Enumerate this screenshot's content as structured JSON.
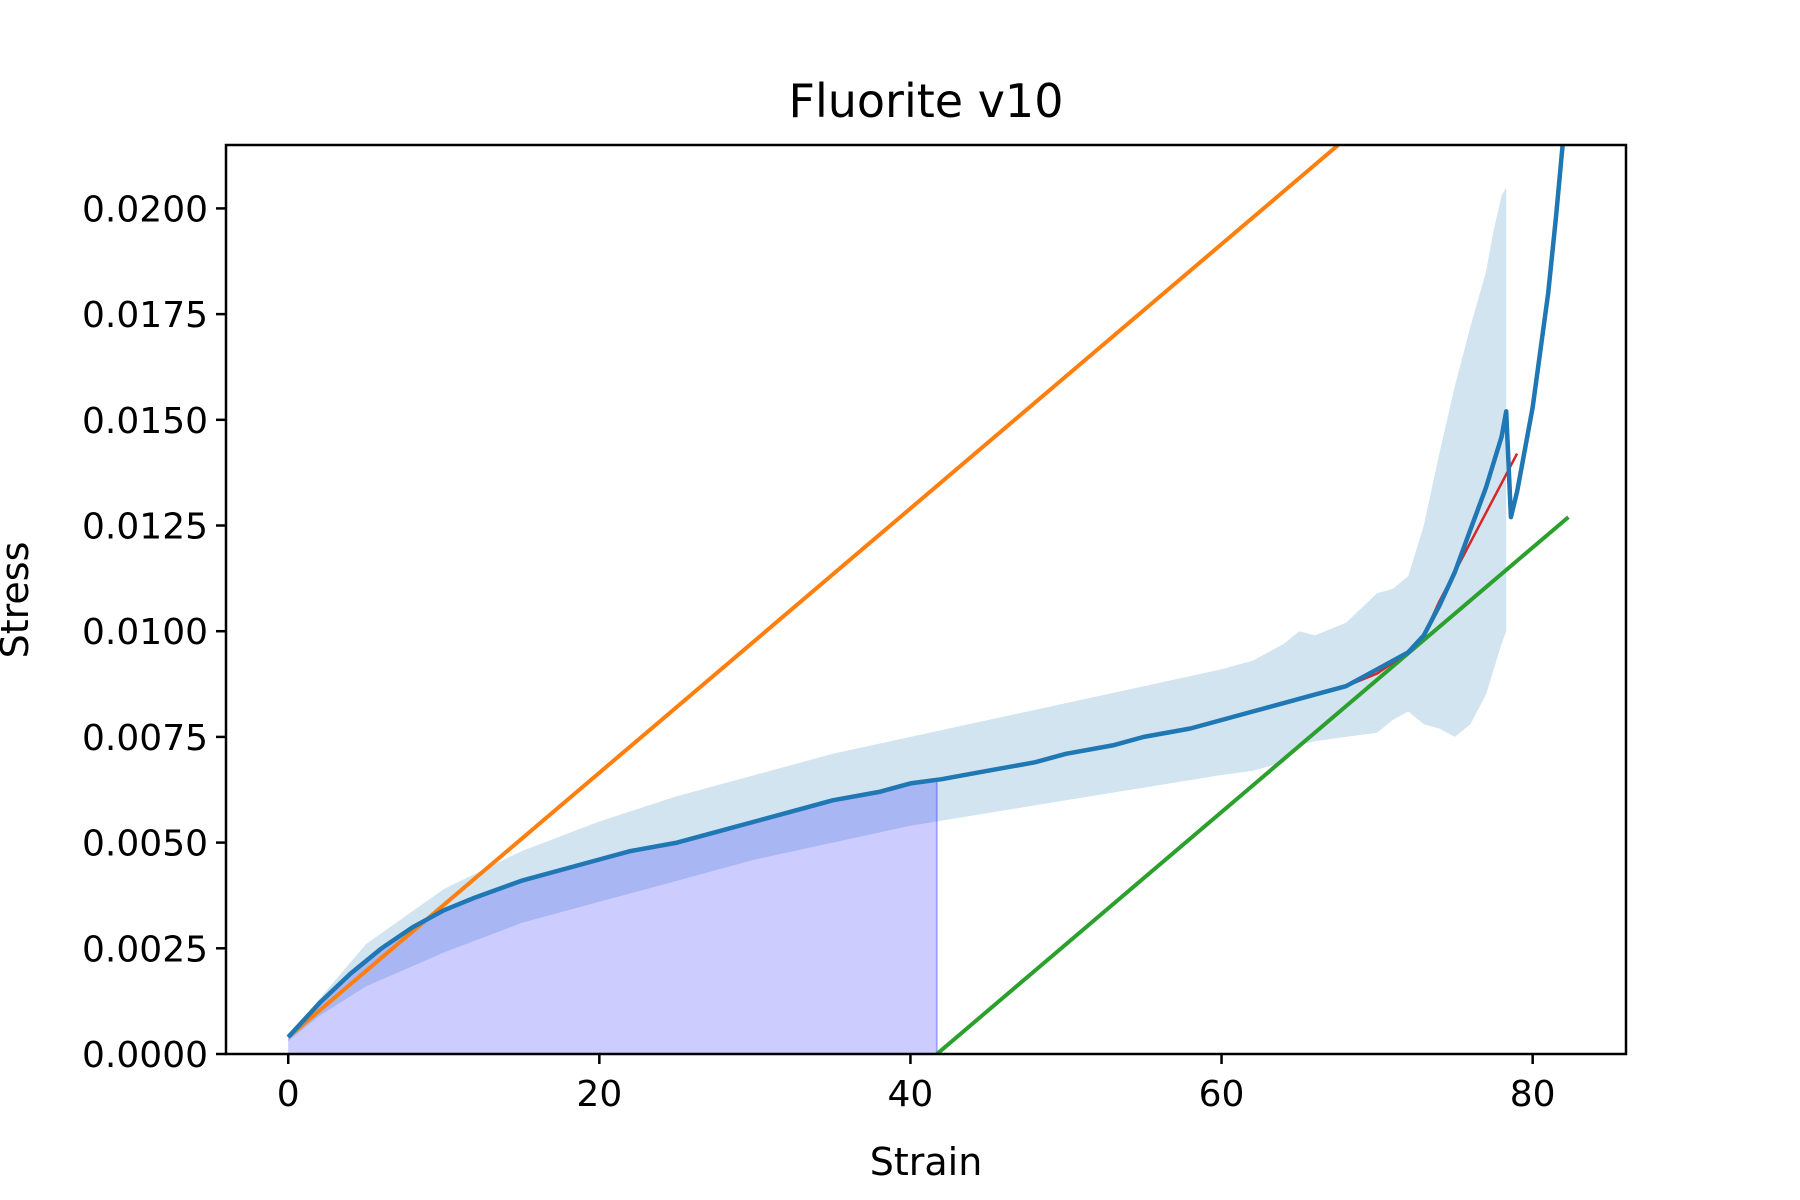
{
  "chart_data": {
    "type": "line",
    "title": "Fluorite v10",
    "xlabel": "Strain",
    "ylabel": "Stress",
    "xlim": [
      -4,
      86
    ],
    "ylim": [
      0,
      0.0215
    ],
    "x_ticks": [
      0,
      20,
      40,
      60,
      80
    ],
    "x_tick_labels": [
      "0",
      "20",
      "40",
      "60",
      "80"
    ],
    "y_ticks": [
      0,
      0.0025,
      0.005,
      0.0075,
      0.01,
      0.0125,
      0.015,
      0.0175,
      0.02
    ],
    "y_tick_labels": [
      "0.0000",
      "0.0025",
      "0.0050",
      "0.0075",
      "0.0100",
      "0.0125",
      "0.0150",
      "0.0175",
      "0.0200"
    ],
    "grid": false,
    "colors": {
      "mean_curve": "#1f77b4",
      "band": "#1f77b4",
      "elastic_line": "#ff7f0e",
      "offset_line": "#2ca02c",
      "fit_curve": "#d62728",
      "toughness_area": "#0000ff"
    },
    "series": [
      {
        "role": "mean_curve",
        "x": [
          0,
          2,
          4,
          6,
          8,
          10,
          12,
          15,
          18,
          20,
          22,
          25,
          28,
          30,
          33,
          35,
          38,
          40,
          42,
          45,
          48,
          50,
          53,
          55,
          58,
          60,
          62,
          63,
          64,
          66,
          68,
          70,
          71,
          72,
          73,
          74,
          75,
          76,
          77,
          78,
          78.3,
          78.6,
          79,
          80,
          81,
          81.5,
          82,
          82.3
        ],
        "y": [
          0.0004,
          0.0012,
          0.0019,
          0.0025,
          0.003,
          0.0034,
          0.0037,
          0.0041,
          0.0044,
          0.0046,
          0.0048,
          0.005,
          0.0053,
          0.0055,
          0.0058,
          0.006,
          0.0062,
          0.0064,
          0.0065,
          0.0067,
          0.0069,
          0.0071,
          0.0073,
          0.0075,
          0.0077,
          0.0079,
          0.0081,
          0.0082,
          0.0083,
          0.0085,
          0.0087,
          0.0091,
          0.0093,
          0.0095,
          0.0099,
          0.0106,
          0.0114,
          0.0124,
          0.0134,
          0.0146,
          0.0152,
          0.0127,
          0.0133,
          0.0153,
          0.018,
          0.0198,
          0.0218,
          0.023
        ]
      },
      {
        "role": "band",
        "x": [
          0,
          2,
          5,
          10,
          15,
          20,
          25,
          30,
          35,
          40,
          45,
          50,
          55,
          60,
          62,
          64,
          65,
          66,
          68,
          70,
          71,
          72,
          73,
          74,
          75,
          76,
          77,
          77.5,
          78,
          78.3
        ],
        "upper": [
          0.0004,
          0.0013,
          0.0026,
          0.0039,
          0.0048,
          0.0055,
          0.0061,
          0.0066,
          0.0071,
          0.0075,
          0.0079,
          0.0083,
          0.0087,
          0.0091,
          0.0093,
          0.0097,
          0.01,
          0.0099,
          0.0102,
          0.0109,
          0.011,
          0.0113,
          0.0125,
          0.0142,
          0.0158,
          0.0172,
          0.0185,
          0.0195,
          0.0203,
          0.0205
        ],
        "lower": [
          0.0003,
          0.0009,
          0.0016,
          0.0024,
          0.0031,
          0.0036,
          0.0041,
          0.0046,
          0.005,
          0.0054,
          0.0057,
          0.006,
          0.0063,
          0.0066,
          0.0067,
          0.0069,
          0.0073,
          0.0074,
          0.0075,
          0.0076,
          0.0079,
          0.0081,
          0.0078,
          0.0077,
          0.0075,
          0.0078,
          0.0085,
          0.0091,
          0.0097,
          0.01
        ]
      },
      {
        "role": "elastic_line",
        "x": [
          0,
          67.5
        ],
        "y": [
          0.0004,
          0.0215
        ]
      },
      {
        "role": "offset_line",
        "x": [
          41.7,
          82.3
        ],
        "y": [
          0,
          0.0127
        ]
      },
      {
        "role": "fit_curve",
        "x": [
          64,
          66,
          68,
          70,
          72,
          73,
          74,
          75,
          76,
          77,
          78,
          79
        ],
        "y": [
          0.0083,
          0.0085,
          0.0087,
          0.009,
          0.0095,
          0.0099,
          0.0107,
          0.0114,
          0.0121,
          0.0128,
          0.0135,
          0.0142
        ]
      },
      {
        "role": "toughness_area",
        "x": [
          0,
          2,
          4,
          6,
          8,
          10,
          12,
          15,
          18,
          20,
          22,
          25,
          28,
          30,
          33,
          35,
          38,
          40,
          41.7
        ],
        "y": [
          0.0004,
          0.0012,
          0.0019,
          0.0025,
          0.003,
          0.0034,
          0.0037,
          0.0041,
          0.0044,
          0.0046,
          0.0048,
          0.005,
          0.0053,
          0.0055,
          0.0058,
          0.006,
          0.0062,
          0.0064,
          0.0065
        ]
      }
    ]
  }
}
